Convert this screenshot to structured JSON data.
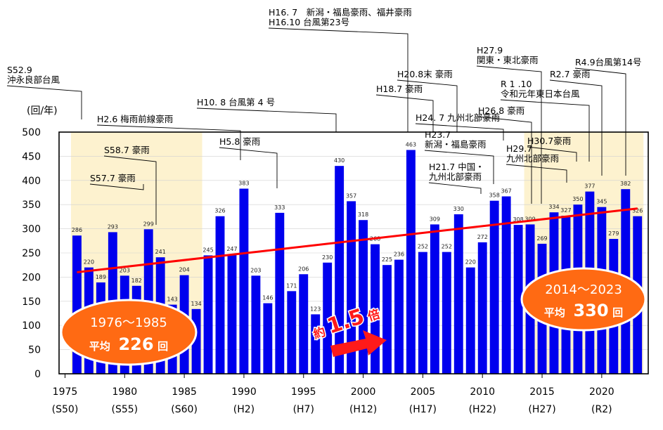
{
  "chart_data": {
    "type": "bar",
    "ylabel": "(回/年)",
    "ylim": [
      0,
      500
    ],
    "yticks": [
      0,
      50,
      100,
      150,
      200,
      250,
      300,
      350,
      400,
      450,
      500
    ],
    "bar_color": "#0000ee",
    "trend_color": "#ff0000",
    "highlight_color": "#fdf2cf",
    "x": [
      1976,
      1977,
      1978,
      1979,
      1980,
      1981,
      1982,
      1983,
      1984,
      1985,
      1986,
      1987,
      1988,
      1989,
      1990,
      1991,
      1992,
      1993,
      1994,
      1995,
      1996,
      1997,
      1998,
      1999,
      2000,
      2001,
      2002,
      2003,
      2004,
      2005,
      2006,
      2007,
      2008,
      2009,
      2010,
      2011,
      2012,
      2013,
      2014,
      2015,
      2016,
      2017,
      2018,
      2019,
      2020,
      2021,
      2022,
      2023
    ],
    "values": [
      286,
      220,
      189,
      293,
      203,
      182,
      299,
      241,
      143,
      204,
      134,
      245,
      326,
      247,
      383,
      203,
      146,
      333,
      171,
      206,
      123,
      230,
      430,
      357,
      318,
      268,
      225,
      236,
      463,
      252,
      309,
      252,
      330,
      220,
      272,
      358,
      367,
      308,
      309,
      269,
      334,
      327,
      350,
      377,
      345,
      279,
      382,
      326
    ],
    "value_labels": [
      "286",
      "220",
      "189",
      "293",
      "203",
      "182",
      "299",
      "241",
      "143",
      "204",
      "134",
      "245",
      "326",
      "247",
      "383",
      "203",
      "146",
      "333",
      "171",
      "206",
      "123",
      "230",
      "430",
      "357",
      "318",
      "268",
      "225",
      "236",
      "463",
      "252",
      "309",
      "252",
      "330",
      "220",
      "272",
      "358",
      "367",
      "308",
      "309",
      "269",
      "334",
      "327",
      "350",
      "377",
      "345",
      "279",
      "382",
      "326"
    ],
    "xticks": [
      {
        "year": 1975,
        "label": "1975",
        "era": "(S50)"
      },
      {
        "year": 1980,
        "label": "1980",
        "era": "(S55)"
      },
      {
        "year": 1985,
        "label": "1985",
        "era": "(S60)"
      },
      {
        "year": 1990,
        "label": "1990",
        "era": "(H2)"
      },
      {
        "year": 1995,
        "label": "1995",
        "era": "(H7)"
      },
      {
        "year": 2000,
        "label": "2000",
        "era": "(H12)"
      },
      {
        "year": 2005,
        "label": "2005",
        "era": "(H17)"
      },
      {
        "year": 2010,
        "label": "2010",
        "era": "(H22)"
      },
      {
        "year": 2015,
        "label": "2015",
        "era": "(H27)"
      },
      {
        "year": 2020,
        "label": "2020",
        "era": "(R2)"
      }
    ],
    "highlight_ranges": [
      [
        1976,
        1986
      ],
      [
        2014,
        2023
      ]
    ],
    "trend": {
      "x": [
        1976,
        2023
      ],
      "y": [
        210,
        342
      ]
    },
    "averages": [
      {
        "period": "1976〜1985",
        "text": "平均",
        "value": "226",
        "unit": "回"
      },
      {
        "period": "2014〜2023",
        "text": "平均",
        "value": "330",
        "unit": "回"
      }
    ],
    "growth_label": {
      "pre": "約",
      "value": "1.5",
      "post": "倍"
    },
    "annotations": [
      {
        "lines": [
          "S52.9",
          "沖永良部台風"
        ],
        "year": 1977
      },
      {
        "lines": [
          "S57.7 豪雨"
        ],
        "year": 1982
      },
      {
        "lines": [
          "S58.7 豪雨"
        ],
        "year": 1983
      },
      {
        "lines": [
          "H2.6 梅雨前線豪雨"
        ],
        "year": 1990
      },
      {
        "lines": [
          "H5.8 豪雨"
        ],
        "year": 1993
      },
      {
        "lines": [
          "H10. 8 台風第 4 号"
        ],
        "year": 1998
      },
      {
        "lines": [
          "H16. 7　新潟・福島豪雨、福井豪雨",
          "H16.10 台風第23号"
        ],
        "year": 2004
      },
      {
        "lines": [
          "H18.7 豪雨"
        ],
        "year": 2006
      },
      {
        "lines": [
          "H20.8末 豪雨"
        ],
        "year": 2008
      },
      {
        "lines": [
          "H21.7 中国・",
          "九州北部豪雨"
        ],
        "year": 2009
      },
      {
        "lines": [
          "H23.7",
          "新潟・福島豪雨"
        ],
        "year": 2011
      },
      {
        "lines": [
          "H24. 7 九州北部豪雨"
        ],
        "year": 2012
      },
      {
        "lines": [
          "H26.8 豪雨"
        ],
        "year": 2014
      },
      {
        "lines": [
          "H27.9",
          "関東・東北豪雨"
        ],
        "year": 2015
      },
      {
        "lines": [
          "H29.7",
          "九州北部豪雨"
        ],
        "year": 2017
      },
      {
        "lines": [
          "H30.7豪雨"
        ],
        "year": 2018
      },
      {
        "lines": [
          "R 1 .10",
          "令和元年東日本台風"
        ],
        "year": 2019
      },
      {
        "lines": [
          "R2.7 豪雨"
        ],
        "year": 2020
      },
      {
        "lines": [
          "R4.9台風第14号"
        ],
        "year": 2022
      }
    ]
  }
}
